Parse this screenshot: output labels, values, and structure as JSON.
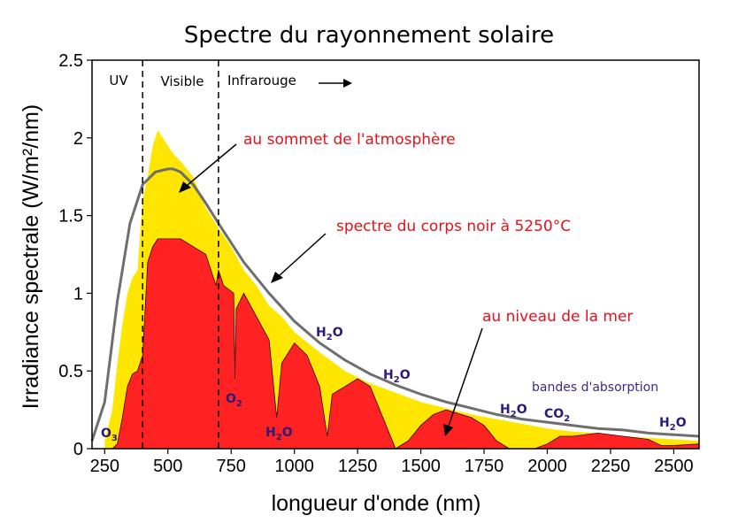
{
  "chart_data": {
    "type": "area",
    "title": "Spectre du rayonnement solaire",
    "xlabel": "longueur d'onde (nm)",
    "ylabel": "Irradiance spectrale (W/m²/nm)",
    "xlim": [
      200,
      2600
    ],
    "ylim": [
      0,
      2.5
    ],
    "x_ticks": [
      250,
      500,
      750,
      1000,
      1250,
      1500,
      1750,
      2000,
      2250,
      2500
    ],
    "y_ticks": [
      "0",
      "0.5",
      "1",
      "1.5",
      "2",
      "2.5"
    ],
    "grid": false,
    "colors": {
      "top_of_atmosphere": "#ffe600",
      "sea_level": "#ff2222",
      "blackbody": "#6e6e6e",
      "annotation": "#e8101a",
      "absorption": "#2a1a7a"
    },
    "regions": [
      {
        "label": "UV",
        "from": 200,
        "to": 400
      },
      {
        "label": "Visible",
        "from": 400,
        "to": 700
      },
      {
        "label": "Infrarouge",
        "from": 700,
        "to": 2600
      }
    ],
    "series": [
      {
        "name": "au sommet de l'atmosphère",
        "x": [
          250,
          280,
          300,
          320,
          340,
          360,
          380,
          400,
          420,
          440,
          460,
          480,
          500,
          520,
          550,
          600,
          650,
          700,
          750,
          800,
          850,
          900,
          950,
          1000,
          1100,
          1200,
          1300,
          1400,
          1500,
          1600,
          1700,
          1800,
          1900,
          2000,
          2100,
          2200,
          2300,
          2400,
          2500,
          2600
        ],
        "values": [
          0.05,
          0.25,
          0.55,
          0.8,
          1.0,
          1.1,
          1.15,
          1.6,
          1.75,
          1.95,
          2.05,
          2.0,
          1.95,
          1.9,
          1.85,
          1.75,
          1.55,
          1.42,
          1.3,
          1.15,
          1.05,
          0.92,
          0.85,
          0.75,
          0.62,
          0.5,
          0.42,
          0.36,
          0.3,
          0.26,
          0.22,
          0.19,
          0.16,
          0.13,
          0.11,
          0.1,
          0.08,
          0.07,
          0.06,
          0.05
        ]
      },
      {
        "name": "spectre du corps noir à 5250°C",
        "x": [
          200,
          250,
          300,
          350,
          400,
          450,
          500,
          520,
          550,
          600,
          650,
          700,
          800,
          900,
          1000,
          1100,
          1200,
          1300,
          1400,
          1500,
          1600,
          1700,
          1800,
          1900,
          2000,
          2100,
          2200,
          2300,
          2400,
          2500,
          2600
        ],
        "values": [
          0.05,
          0.3,
          0.95,
          1.45,
          1.7,
          1.78,
          1.8,
          1.8,
          1.78,
          1.7,
          1.58,
          1.45,
          1.2,
          1.0,
          0.82,
          0.68,
          0.57,
          0.48,
          0.41,
          0.35,
          0.3,
          0.26,
          0.22,
          0.19,
          0.17,
          0.15,
          0.13,
          0.12,
          0.1,
          0.09,
          0.08
        ]
      },
      {
        "name": "au niveau de la mer",
        "x": [
          280,
          300,
          320,
          340,
          360,
          380,
          400,
          420,
          440,
          460,
          480,
          500,
          550,
          600,
          650,
          690,
          700,
          720,
          760,
          765,
          770,
          800,
          850,
          900,
          930,
          950,
          1000,
          1050,
          1100,
          1130,
          1150,
          1200,
          1250,
          1300,
          1350,
          1400,
          1450,
          1500,
          1550,
          1600,
          1700,
          1750,
          1800,
          1850,
          1950,
          2000,
          2050,
          2100,
          2200,
          2300,
          2400,
          2450,
          2500,
          2600
        ],
        "values": [
          0.0,
          0.03,
          0.2,
          0.4,
          0.48,
          0.5,
          0.6,
          1.2,
          1.3,
          1.35,
          1.35,
          1.35,
          1.35,
          1.3,
          1.25,
          1.05,
          1.15,
          1.05,
          1.0,
          0.45,
          0.9,
          1.0,
          0.85,
          0.7,
          0.2,
          0.55,
          0.68,
          0.6,
          0.4,
          0.08,
          0.35,
          0.4,
          0.45,
          0.4,
          0.2,
          0.0,
          0.05,
          0.15,
          0.22,
          0.25,
          0.2,
          0.15,
          0.05,
          0.0,
          0.0,
          0.03,
          0.08,
          0.08,
          0.1,
          0.08,
          0.06,
          0.02,
          0.02,
          0.03
        ]
      }
    ],
    "annotations": {
      "top_of_atmosphere": "au sommet de l'atmosphère",
      "blackbody": "spectre du corps noir à 5250°C",
      "sea_level": "au niveau de la mer",
      "absorption_bands": "bandes d'absorption",
      "molecules": {
        "o3": [
          "O",
          "3"
        ],
        "o2": [
          "O",
          "2"
        ],
        "h2o_a": [
          "H",
          "2",
          "O"
        ],
        "h2o_b": [
          "H",
          "2",
          "O"
        ],
        "h2o_c": [
          "H",
          "2",
          "O"
        ],
        "h2o_d": [
          "H",
          "2",
          "O"
        ],
        "h2o_e": [
          "H",
          "2",
          "O"
        ],
        "co2": [
          "CO",
          "2"
        ]
      }
    }
  }
}
